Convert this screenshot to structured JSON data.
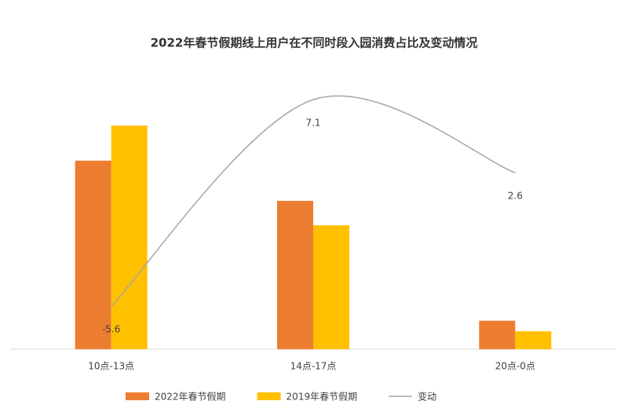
{
  "chart_data": {
    "type": "bar-line",
    "title": "2022年春节假期线上用户在不同时段入园消费占比及变动情况",
    "categories": [
      "10点-13点",
      "14点-17点",
      "20点-0点"
    ],
    "series": [
      {
        "name": "2022年春节假期",
        "type": "bar",
        "color": "#ed7d31",
        "values": [
          51.6,
          40.6,
          7.8
        ]
      },
      {
        "name": "2019年春节假期",
        "type": "bar",
        "color": "#ffc000",
        "values": [
          61.2,
          33.9,
          4.9
        ]
      },
      {
        "name": "变动",
        "type": "line",
        "color": "#a5a5a5",
        "values": [
          -5.6,
          7.1,
          2.6
        ]
      }
    ],
    "legend": "bottom"
  }
}
